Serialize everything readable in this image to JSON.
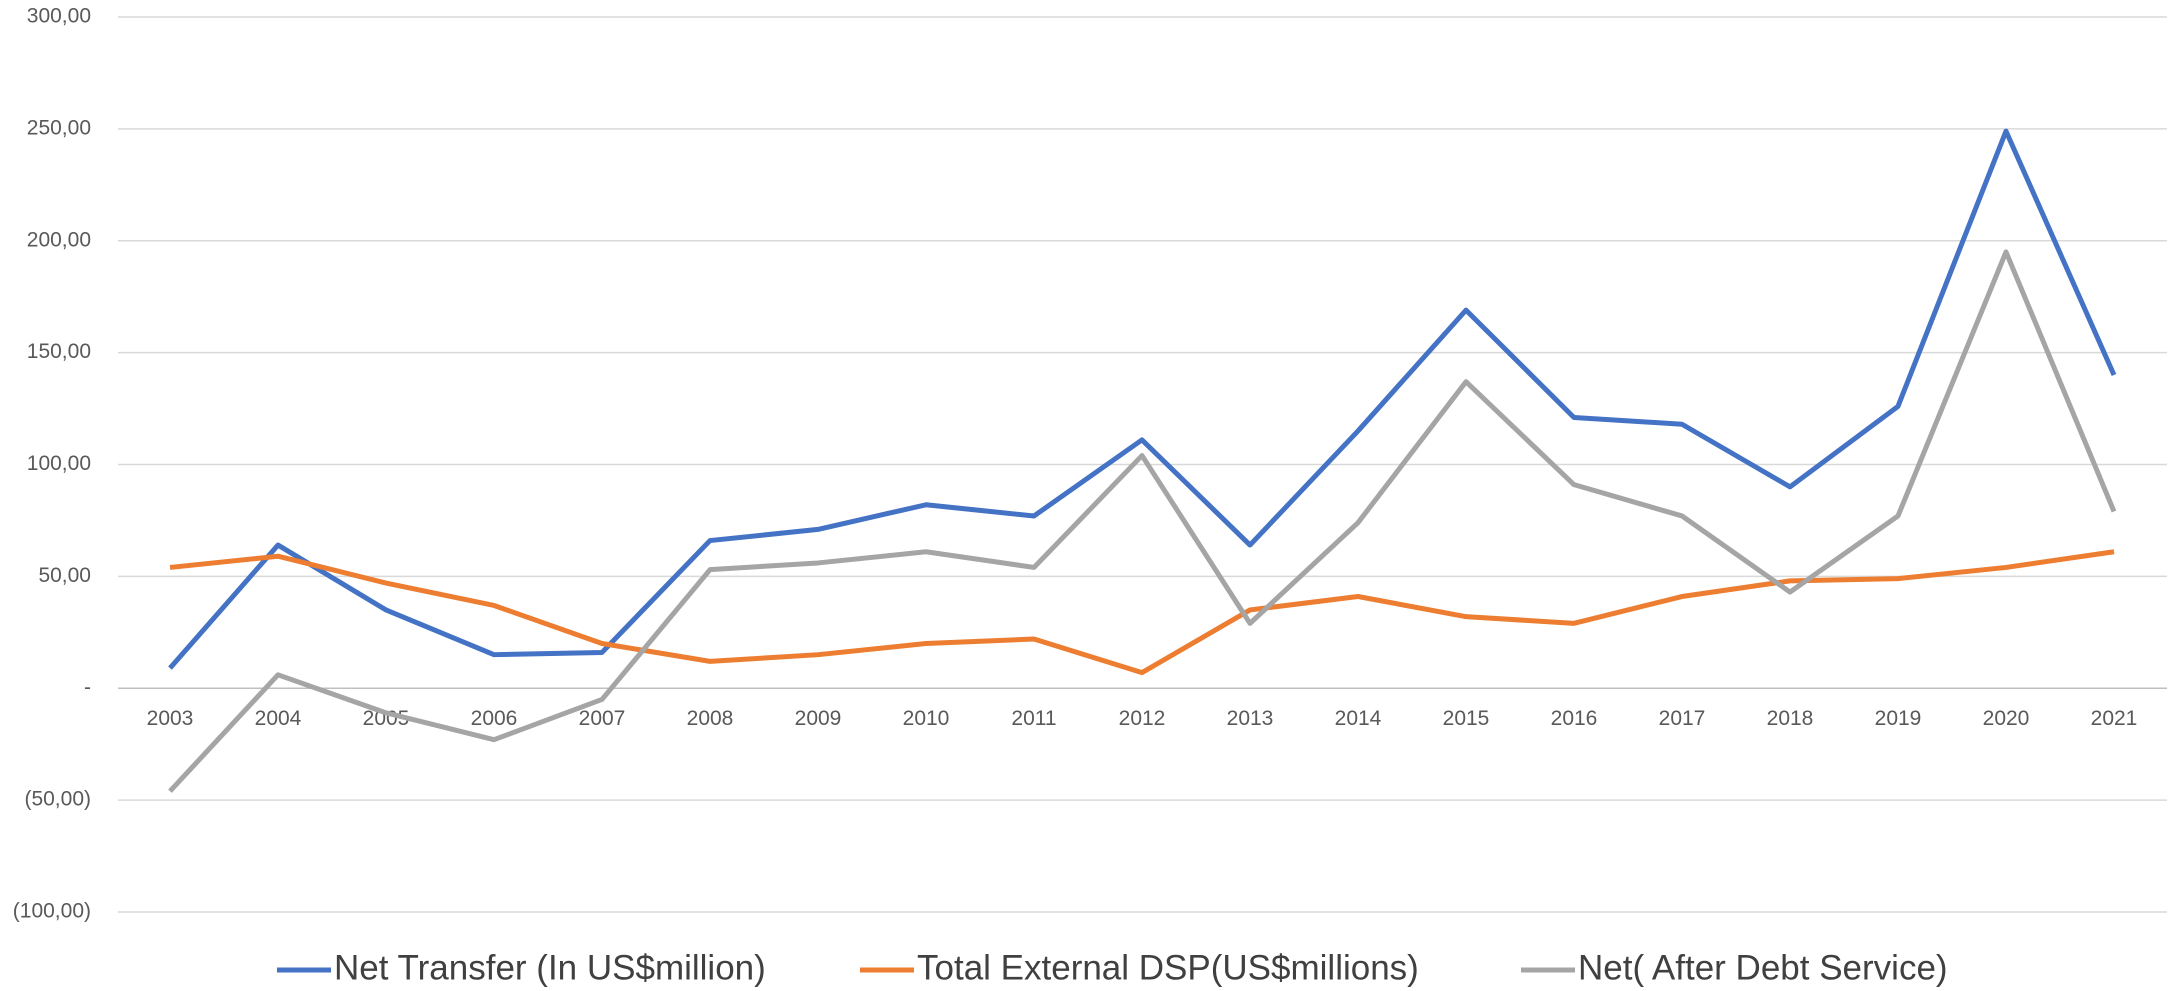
{
  "chart_data": {
    "type": "line",
    "categories": [
      "2003",
      "2004",
      "2005",
      "2006",
      "2007",
      "2008",
      "2009",
      "2010",
      "2011",
      "2012",
      "2013",
      "2014",
      "2015",
      "2016",
      "2017",
      "2018",
      "2019",
      "2020",
      "2021"
    ],
    "series": [
      {
        "name": "Net Transfer  (In US$million)",
        "color": "#4472c4",
        "values": [
          9,
          64,
          35,
          15,
          16,
          66,
          71,
          82,
          77,
          111,
          64,
          115,
          169,
          121,
          118,
          90,
          126,
          249,
          140
        ]
      },
      {
        "name": "Total  External DSP(US$millions)",
        "color": "#ed7d31",
        "values": [
          54,
          59,
          47,
          37,
          20,
          12,
          15,
          20,
          22,
          7,
          35,
          41,
          32,
          29,
          41,
          48,
          49,
          54,
          61
        ]
      },
      {
        "name": "Net( After Debt Service)",
        "color": "#a5a5a5",
        "values": [
          -46,
          6,
          -11,
          -23,
          -5,
          53,
          56,
          61,
          54,
          104,
          29,
          74,
          137,
          91,
          77,
          43,
          77,
          195,
          79
        ]
      }
    ],
    "ylim": [
      -100,
      300
    ],
    "yticks": [
      {
        "value": -100,
        "label": "(100,00)"
      },
      {
        "value": -50,
        "label": "(50,00)"
      },
      {
        "value": 0,
        "label": "-"
      },
      {
        "value": 50,
        "label": "50,00"
      },
      {
        "value": 100,
        "label": "100,00"
      },
      {
        "value": 150,
        "label": "150,00"
      },
      {
        "value": 200,
        "label": "200,00"
      },
      {
        "value": 250,
        "label": "250,00"
      },
      {
        "value": 300,
        "label": "300,00"
      }
    ],
    "grid": true,
    "legend": "bottom"
  }
}
